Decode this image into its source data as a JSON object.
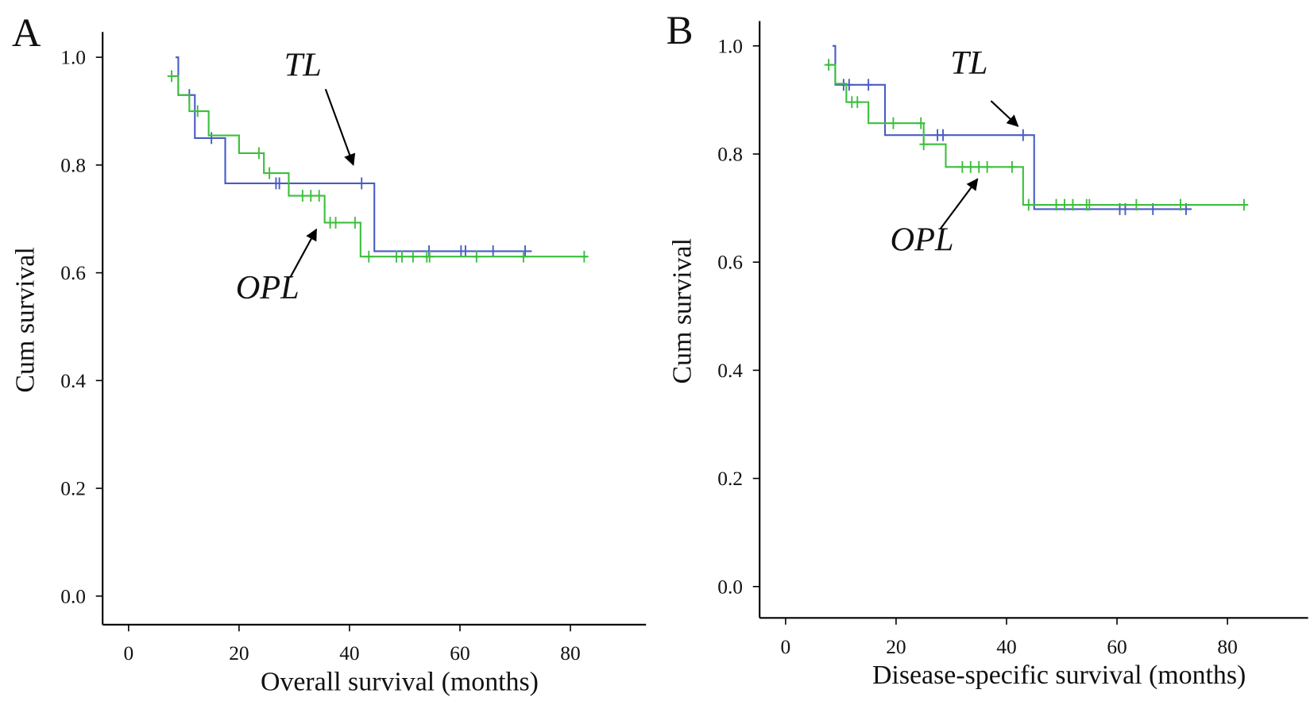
{
  "chart_data": [
    {
      "type": "line",
      "title": "A",
      "x_label": "Overall survival (months)",
      "y_label": "Cum survival",
      "xlim": [
        -4.7,
        93.7
      ],
      "xticks": [
        0,
        20,
        40,
        60,
        80
      ],
      "ylim": [
        -0.053,
        1.047
      ],
      "yticks": [
        {
          "value": 0,
          "label": "0.0"
        },
        {
          "value": 0.2,
          "label": "0.2"
        },
        {
          "value": 0.4,
          "label": "0.4"
        },
        {
          "value": 0.6,
          "label": "0.6"
        },
        {
          "value": 0.8,
          "label": "0.8"
        },
        {
          "value": 1,
          "label": "1.0"
        }
      ],
      "series": [
        {
          "name": "TL",
          "color": "#4a5cc4",
          "x": [
            8.5,
            9,
            9,
            12,
            12,
            17.5,
            17.5,
            44.5,
            44.5,
            73
          ],
          "values": [
            1,
            1,
            0.93,
            0.93,
            0.85,
            0.85,
            0.766,
            0.766,
            0.64,
            0.64
          ],
          "censor_x": [
            11,
            15,
            26.7,
            27.3,
            42.2,
            54.4,
            60.2,
            61,
            66,
            71.8
          ],
          "censor_values": [
            0.93,
            0.85,
            0.766,
            0.766,
            0.766,
            0.64,
            0.64,
            0.64,
            0.64,
            0.64
          ]
        },
        {
          "name": "OPL",
          "color": "#3cbf3c",
          "x": [
            7.5,
            9,
            9,
            11,
            11,
            14.5,
            14.5,
            20,
            20,
            24.5,
            24.5,
            29,
            29,
            35.5,
            35.5,
            42,
            42,
            83
          ],
          "values": [
            0.965,
            0.965,
            0.93,
            0.93,
            0.9,
            0.9,
            0.855,
            0.855,
            0.822,
            0.822,
            0.785,
            0.785,
            0.743,
            0.743,
            0.693,
            0.693,
            0.63,
            0.63
          ],
          "censor_x": [
            7.8,
            12.5,
            23.6,
            25.5,
            31.5,
            33,
            34.5,
            36.5,
            37.5,
            41,
            43.5,
            48.5,
            49.5,
            51.5,
            54,
            54.5,
            63,
            71.5,
            82.5
          ],
          "censor_values": [
            0.965,
            0.9,
            0.822,
            0.785,
            0.743,
            0.743,
            0.743,
            0.693,
            0.693,
            0.693,
            0.63,
            0.63,
            0.63,
            0.63,
            0.63,
            0.63,
            0.63,
            0.63,
            0.63
          ]
        }
      ]
    },
    {
      "type": "line",
      "title": "B",
      "x_label": "Disease-specific survival (months)",
      "y_label": "Cum survival",
      "xlim": [
        -4.7,
        94.6
      ],
      "xticks": [
        0,
        20,
        40,
        60,
        80
      ],
      "ylim": [
        -0.058,
        1.046
      ],
      "yticks": [
        {
          "value": 0,
          "label": "0.0"
        },
        {
          "value": 0.2,
          "label": "0.2"
        },
        {
          "value": 0.4,
          "label": "0.4"
        },
        {
          "value": 0.6,
          "label": "0.6"
        },
        {
          "value": 0.8,
          "label": "0.8"
        },
        {
          "value": 1,
          "label": "1.0"
        }
      ],
      "series": [
        {
          "name": "TL",
          "color": "#4a5cc4",
          "x": [
            8.5,
            9,
            9,
            18,
            18,
            45,
            45,
            73.5
          ],
          "values": [
            1,
            1,
            0.928,
            0.928,
            0.835,
            0.835,
            0.698,
            0.698
          ],
          "censor_x": [
            10.5,
            11.5,
            15,
            27.5,
            28.5,
            43,
            60.5,
            61.5,
            66.5,
            72.5
          ],
          "censor_values": [
            0.928,
            0.928,
            0.928,
            0.835,
            0.835,
            0.835,
            0.698,
            0.698,
            0.698,
            0.698
          ]
        },
        {
          "name": "OPL",
          "color": "#3cbf3c",
          "x": [
            7.5,
            9,
            9,
            11,
            11,
            15,
            15,
            25,
            25,
            29,
            29,
            43,
            43,
            83
          ],
          "values": [
            0.965,
            0.965,
            0.93,
            0.93,
            0.896,
            0.896,
            0.857,
            0.857,
            0.818,
            0.818,
            0.776,
            0.776,
            0.706,
            0.706
          ],
          "censor_x": [
            7.8,
            12,
            13,
            19.5,
            24.5,
            25,
            32,
            33.5,
            35,
            36.5,
            41,
            44,
            49,
            50.5,
            52,
            54.5,
            55,
            63.5,
            71.5,
            83
          ],
          "censor_values": [
            0.965,
            0.896,
            0.896,
            0.857,
            0.857,
            0.818,
            0.776,
            0.776,
            0.776,
            0.776,
            0.776,
            0.706,
            0.706,
            0.706,
            0.706,
            0.706,
            0.706,
            0.706,
            0.706,
            0.706
          ]
        }
      ]
    }
  ]
}
